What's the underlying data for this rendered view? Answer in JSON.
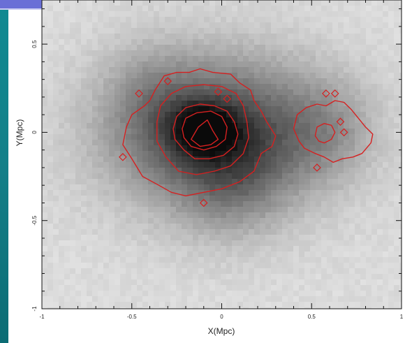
{
  "chart_data": {
    "type": "heatmap",
    "title": "",
    "xlabel": "X(Mpc)",
    "ylabel": "Y(Mpc)",
    "xlim": [
      -1,
      1
    ],
    "ylim": [
      -1,
      0.75
    ],
    "x_ticks": [
      -1,
      -0.5,
      0,
      0.5,
      1
    ],
    "x_tick_labels": [
      "-1",
      "-0.5",
      "0",
      "0.5",
      "1"
    ],
    "y_ticks": [
      -1,
      -0.5,
      0,
      0.5
    ],
    "y_tick_labels": [
      "-1",
      "-0.5",
      "0",
      "0.5"
    ],
    "grid": false,
    "colors": {
      "background_map": "grayscale",
      "contours": "#d62020",
      "sidebar": "#11808a",
      "title_bar": "#6a6fd6"
    },
    "heatmap_components": [
      {
        "cx": -0.02,
        "cy": 0.0,
        "sx": 0.42,
        "sy": 0.3,
        "amp": 0.55
      },
      {
        "cx": -0.1,
        "cy": 0.02,
        "sx": 0.12,
        "sy": 0.1,
        "amp": 0.35
      },
      {
        "cx": 0.05,
        "cy": -0.25,
        "sx": 0.22,
        "sy": 0.25,
        "amp": 0.18
      },
      {
        "cx": 0.6,
        "cy": 0.02,
        "sx": 0.18,
        "sy": 0.2,
        "amp": 0.15
      },
      {
        "cx": -0.4,
        "cy": 0.2,
        "sx": 0.18,
        "sy": 0.22,
        "amp": 0.12
      }
    ],
    "contours": [
      {
        "level": 1,
        "points": [
          [
            -0.55,
            -0.07
          ],
          [
            -0.53,
            0.03
          ],
          [
            -0.5,
            0.1
          ],
          [
            -0.43,
            0.15
          ],
          [
            -0.4,
            0.18
          ],
          [
            -0.37,
            0.24
          ],
          [
            -0.32,
            0.32
          ],
          [
            -0.25,
            0.34
          ],
          [
            -0.18,
            0.34
          ],
          [
            -0.12,
            0.36
          ],
          [
            -0.05,
            0.34
          ],
          [
            0.05,
            0.33
          ],
          [
            0.1,
            0.28
          ],
          [
            0.16,
            0.24
          ],
          [
            0.18,
            0.18
          ],
          [
            0.22,
            0.12
          ],
          [
            0.25,
            0.06
          ],
          [
            0.3,
            -0.02
          ],
          [
            0.28,
            -0.08
          ],
          [
            0.22,
            -0.12
          ],
          [
            0.18,
            -0.22
          ],
          [
            0.1,
            -0.28
          ],
          [
            0.0,
            -0.32
          ],
          [
            -0.1,
            -0.34
          ],
          [
            -0.2,
            -0.36
          ],
          [
            -0.28,
            -0.34
          ],
          [
            -0.35,
            -0.3
          ],
          [
            -0.44,
            -0.25
          ],
          [
            -0.5,
            -0.15
          ]
        ]
      },
      {
        "level": 2,
        "points": [
          [
            -0.36,
            0.06
          ],
          [
            -0.34,
            0.15
          ],
          [
            -0.28,
            0.22
          ],
          [
            -0.2,
            0.26
          ],
          [
            -0.1,
            0.27
          ],
          [
            0.0,
            0.26
          ],
          [
            0.08,
            0.22
          ],
          [
            0.12,
            0.15
          ],
          [
            0.14,
            0.06
          ],
          [
            0.15,
            -0.03
          ],
          [
            0.12,
            -0.12
          ],
          [
            0.05,
            -0.19
          ],
          [
            -0.04,
            -0.22
          ],
          [
            -0.14,
            -0.24
          ],
          [
            -0.24,
            -0.22
          ],
          [
            -0.31,
            -0.14
          ],
          [
            -0.36,
            -0.05
          ]
        ]
      },
      {
        "level": 3,
        "points": [
          [
            -0.27,
            0.02
          ],
          [
            -0.25,
            0.09
          ],
          [
            -0.2,
            0.14
          ],
          [
            -0.12,
            0.16
          ],
          [
            -0.04,
            0.15
          ],
          [
            0.03,
            0.12
          ],
          [
            0.07,
            0.06
          ],
          [
            0.09,
            -0.01
          ],
          [
            0.07,
            -0.08
          ],
          [
            0.01,
            -0.13
          ],
          [
            -0.07,
            -0.15
          ],
          [
            -0.15,
            -0.15
          ],
          [
            -0.21,
            -0.1
          ],
          [
            -0.26,
            -0.04
          ]
        ]
      },
      {
        "level": 4,
        "points": [
          [
            -0.22,
            0.02
          ],
          [
            -0.2,
            0.08
          ],
          [
            -0.14,
            0.11
          ],
          [
            -0.06,
            0.12
          ],
          [
            0.0,
            0.09
          ],
          [
            0.03,
            0.03
          ],
          [
            0.02,
            -0.04
          ],
          [
            -0.03,
            -0.08
          ],
          [
            -0.1,
            -0.1
          ],
          [
            -0.17,
            -0.08
          ],
          [
            -0.21,
            -0.03
          ]
        ]
      },
      {
        "level": 5,
        "points": [
          [
            -0.17,
            -0.04
          ],
          [
            -0.13,
            0.03
          ],
          [
            -0.08,
            0.07
          ],
          [
            -0.05,
            0.01
          ],
          [
            -0.02,
            -0.04
          ],
          [
            -0.06,
            -0.07
          ],
          [
            -0.12,
            -0.08
          ]
        ]
      },
      {
        "level": 1,
        "points": [
          [
            0.4,
            0.02
          ],
          [
            0.42,
            0.1
          ],
          [
            0.47,
            0.14
          ],
          [
            0.53,
            0.16
          ],
          [
            0.58,
            0.15
          ],
          [
            0.63,
            0.18
          ],
          [
            0.68,
            0.17
          ],
          [
            0.72,
            0.13
          ],
          [
            0.76,
            0.08
          ],
          [
            0.8,
            0.03
          ],
          [
            0.84,
            -0.01
          ],
          [
            0.83,
            -0.06
          ],
          [
            0.78,
            -0.12
          ],
          [
            0.73,
            -0.14
          ],
          [
            0.67,
            -0.15
          ],
          [
            0.62,
            -0.17
          ],
          [
            0.57,
            -0.14
          ],
          [
            0.52,
            -0.12
          ],
          [
            0.46,
            -0.09
          ],
          [
            0.43,
            -0.05
          ]
        ]
      },
      {
        "level": 2,
        "points": [
          [
            0.52,
            -0.02
          ],
          [
            0.53,
            0.03
          ],
          [
            0.57,
            0.05
          ],
          [
            0.61,
            0.04
          ],
          [
            0.63,
            0.0
          ],
          [
            0.61,
            -0.04
          ],
          [
            0.57,
            -0.06
          ],
          [
            0.54,
            -0.05
          ]
        ]
      }
    ],
    "contour_islands": [
      [
        -0.46,
        0.22
      ],
      [
        -0.3,
        0.29
      ],
      [
        -0.02,
        0.23
      ],
      [
        0.03,
        0.19
      ],
      [
        0.66,
        0.06
      ],
      [
        0.68,
        0.0
      ],
      [
        0.58,
        0.22
      ],
      [
        0.63,
        0.22
      ],
      [
        0.53,
        -0.2
      ],
      [
        -0.1,
        -0.4
      ],
      [
        -0.55,
        -0.14
      ]
    ]
  }
}
